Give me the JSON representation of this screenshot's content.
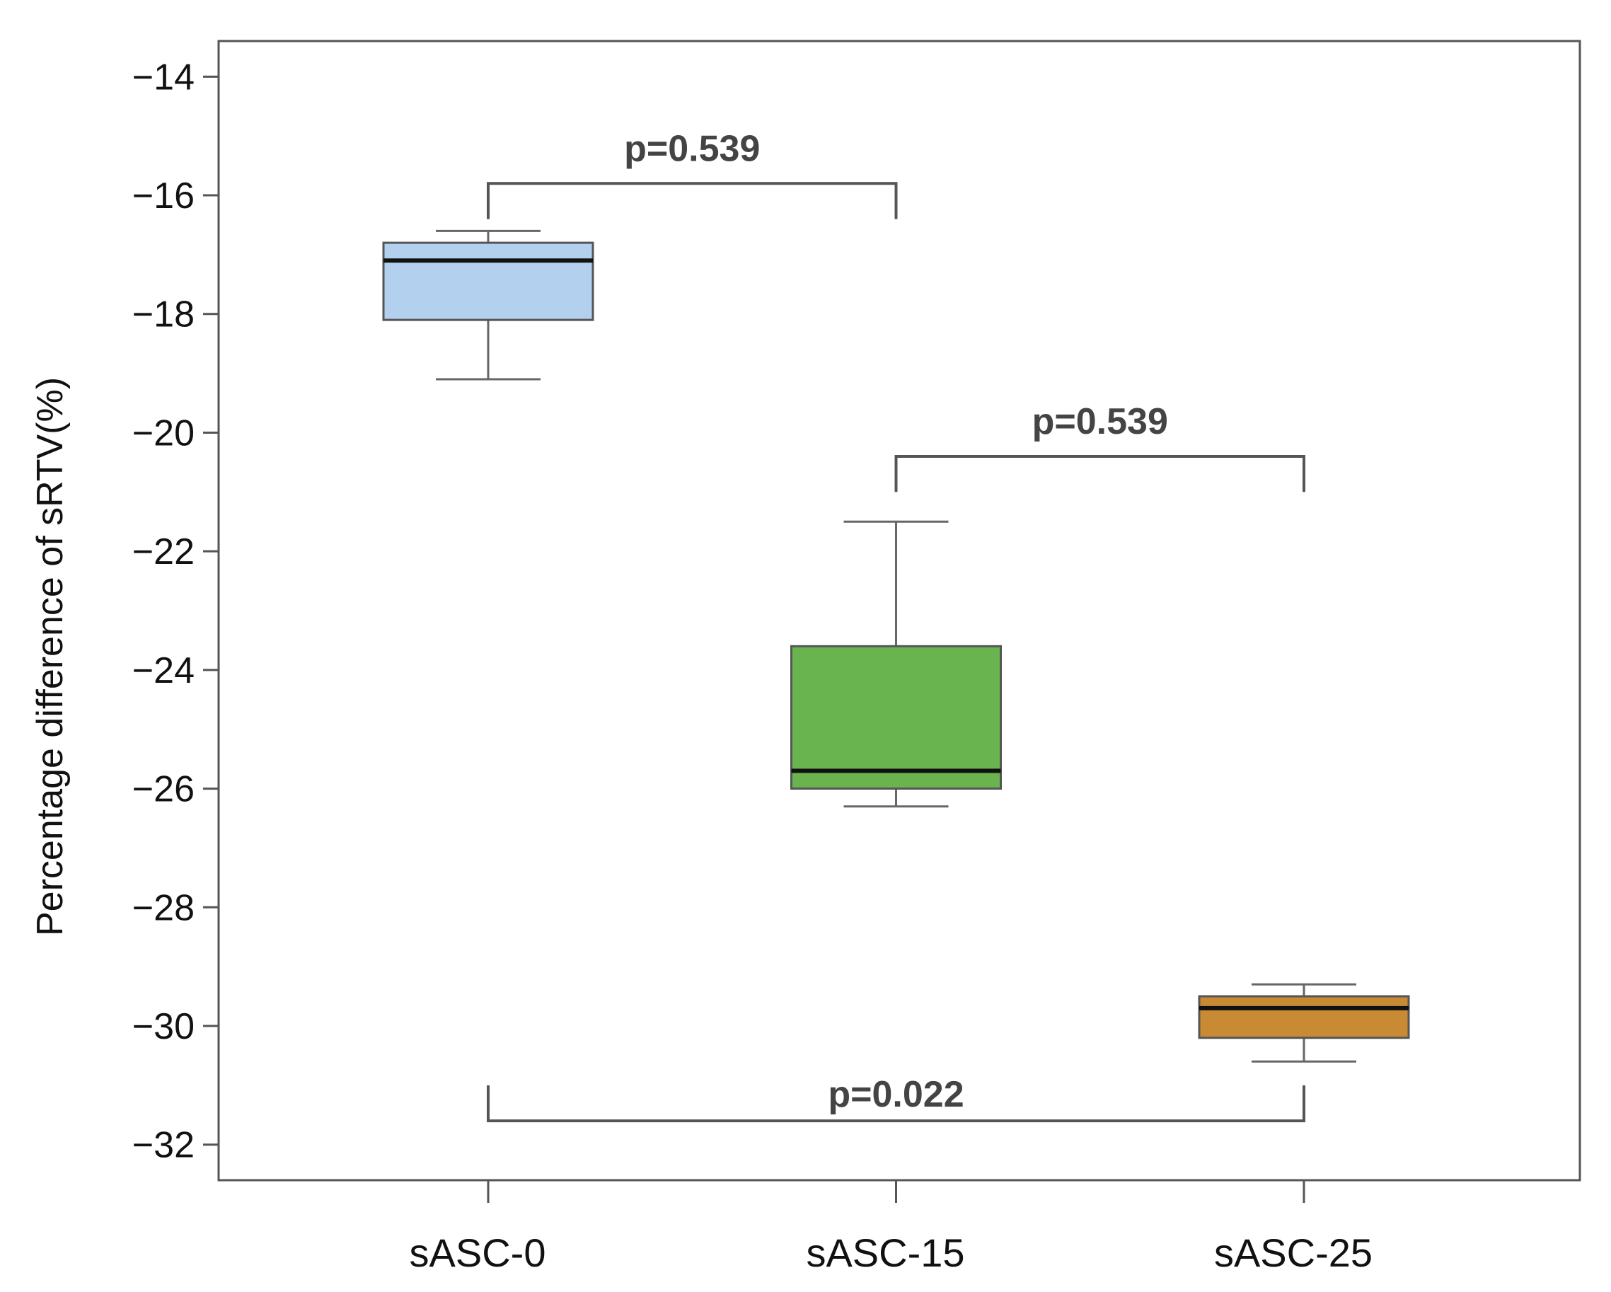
{
  "chart_data": {
    "type": "box",
    "title": "",
    "xlabel": "",
    "ylabel": "Percentage difference of sRTV(%)",
    "ylim": [
      -32.6,
      -13.4
    ],
    "yticks": [
      -14,
      -16,
      -18,
      -20,
      -22,
      -24,
      -26,
      -28,
      -30,
      -32
    ],
    "ytick_labels": [
      "−14",
      "−16",
      "−18",
      "−20",
      "−22",
      "−24",
      "−26",
      "−28",
      "−30",
      "−32"
    ],
    "grid": false,
    "categories": [
      "sASC-0",
      "sASC-15",
      "sASC-25"
    ],
    "boxes": [
      {
        "name": "sASC-0",
        "whisker_low": -19.1,
        "q1": -18.1,
        "median": -17.1,
        "q3": -16.8,
        "whisker_high": -16.6,
        "color": "#b3d1ee"
      },
      {
        "name": "sASC-15",
        "whisker_low": -26.3,
        "q1": -26.0,
        "median": -25.7,
        "q3": -23.6,
        "whisker_high": -21.5,
        "color": "#6ab44f"
      },
      {
        "name": "sASC-25",
        "whisker_low": -30.6,
        "q1": -30.2,
        "median": -29.7,
        "q3": -29.5,
        "whisker_high": -29.3,
        "color": "#c98a34"
      }
    ],
    "comparisons": [
      {
        "from": "sASC-0",
        "to": "sASC-15",
        "label": "p=0.539",
        "bar_y": -15.8,
        "tip_from": -16.4,
        "tip_to": -16.4,
        "direction": "down"
      },
      {
        "from": "sASC-15",
        "to": "sASC-25",
        "label": "p=0.539",
        "bar_y": -20.4,
        "tip_from": -21.0,
        "tip_to": -21.0,
        "direction": "down"
      },
      {
        "from": "sASC-0",
        "to": "sASC-25",
        "label": "p=0.022",
        "bar_y": -31.6,
        "tip_from": -31.0,
        "tip_to": -31.0,
        "direction": "up"
      }
    ]
  }
}
